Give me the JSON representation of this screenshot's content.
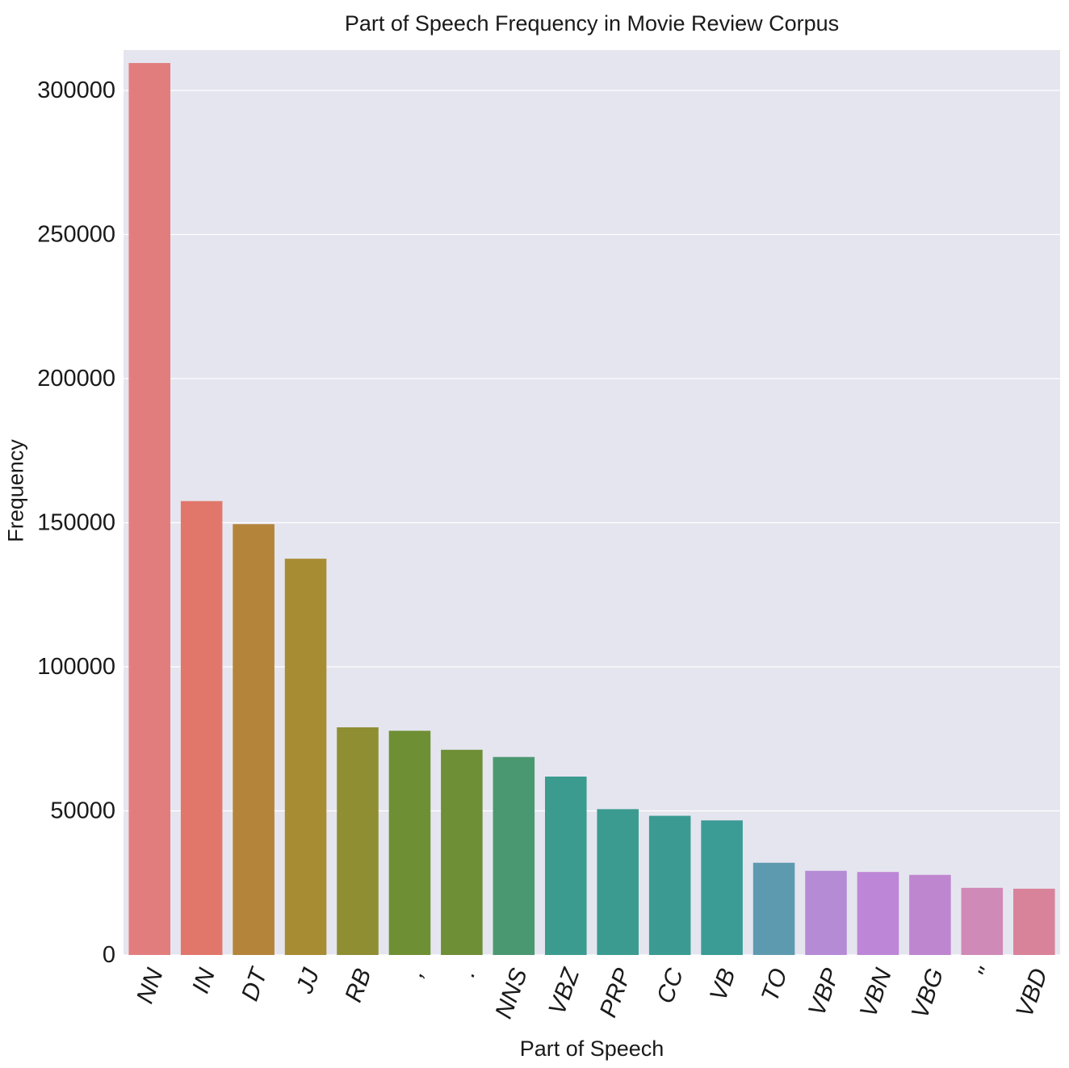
{
  "chart_data": {
    "type": "bar",
    "title": "Part of Speech Frequency in Movie Review Corpus",
    "xlabel": "Part of Speech",
    "ylabel": "Frequency",
    "categories": [
      "NN",
      "IN",
      "DT",
      "JJ",
      "RB",
      ",",
      ".",
      "NNS",
      "VBZ",
      "PRP",
      "CC",
      "VB",
      "TO",
      "VBP",
      "VBN",
      "VBG",
      "''",
      "VBD"
    ],
    "values": [
      309500,
      157500,
      149500,
      137500,
      79000,
      77800,
      71200,
      68700,
      61900,
      50600,
      48300,
      46700,
      32000,
      29200,
      28800,
      27800,
      23300,
      23000
    ],
    "colors": [
      "#e27d7e",
      "#e1776b",
      "#b4843a",
      "#a88c34",
      "#8f8e33",
      "#6f8f34",
      "#6e8f36",
      "#4a9871",
      "#3b9b8f",
      "#3b9b91",
      "#3b9b93",
      "#3b9b95",
      "#5d9ab0",
      "#b58bd6",
      "#bd86d6",
      "#bf86d0",
      "#d08ab8",
      "#d9839a"
    ],
    "yticks": [
      0,
      50000,
      100000,
      150000,
      200000,
      250000,
      300000
    ],
    "ylim": [
      0,
      314000
    ],
    "grid": true,
    "background": "#e5e5ef"
  }
}
